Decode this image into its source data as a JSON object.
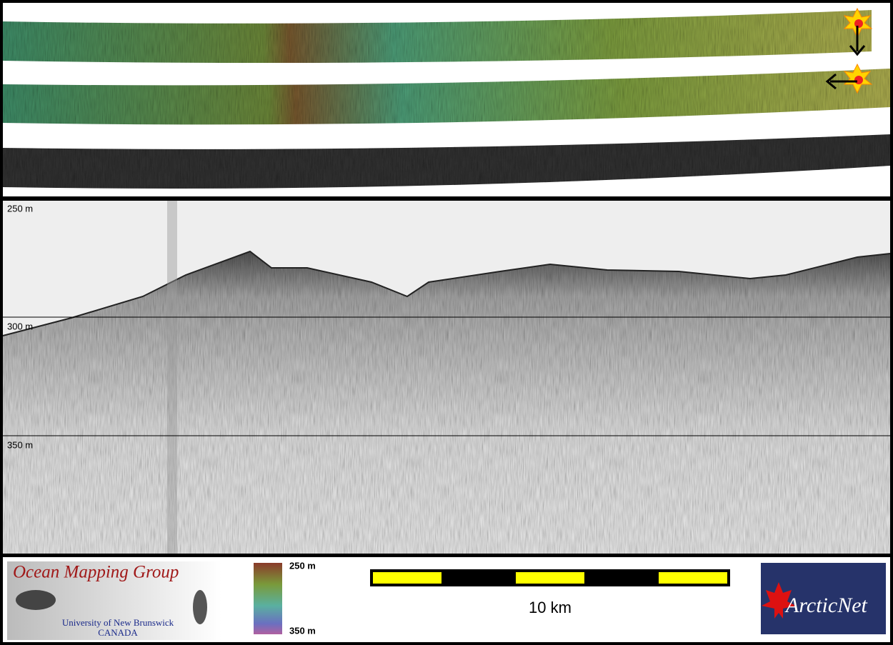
{
  "profile": {
    "depth_labels": [
      "250 m",
      "300 m",
      "350 m"
    ]
  },
  "legend": {
    "group_name": "Ocean Mapping Group",
    "university": "University of New Brunswick",
    "country": "CANADA",
    "colorbar_labels": [
      "250 m",
      "350 m"
    ],
    "scale_label": "10 km",
    "partner": "ArcticNet"
  }
}
